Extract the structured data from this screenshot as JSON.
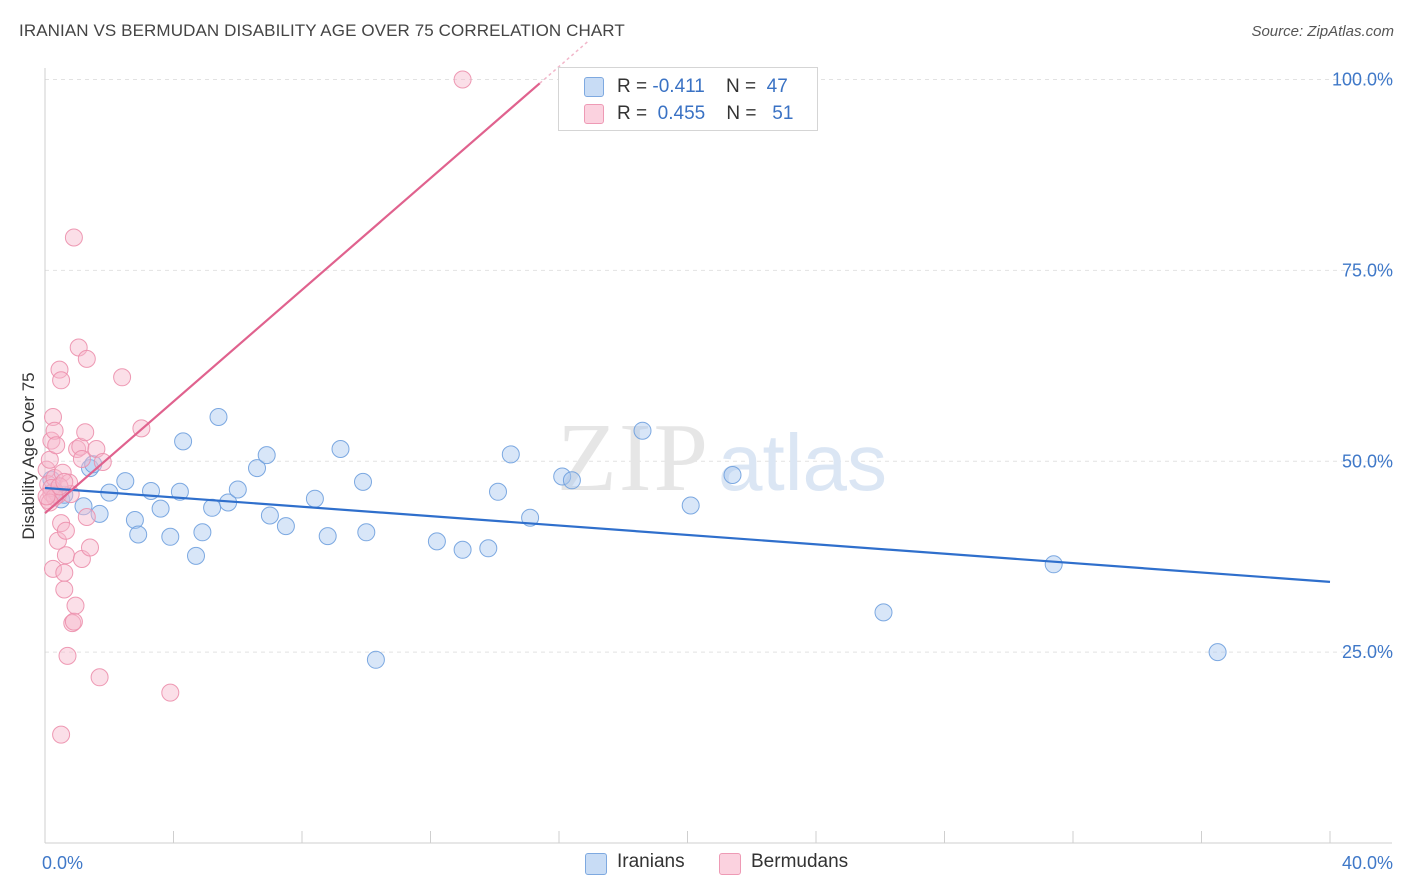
{
  "header": {
    "title": "IRANIAN VS BERMUDAN DISABILITY AGE OVER 75 CORRELATION CHART",
    "source": "Source: ZipAtlas.com"
  },
  "watermark": {
    "zip": "ZIP",
    "atlas": "atlas"
  },
  "legend": {
    "series": [
      {
        "r_label": "R =",
        "r_value": "-0.411",
        "n_label": "N =",
        "n_value": "47",
        "color": "#a9c8ef"
      },
      {
        "r_label": "R =",
        "r_value": "0.455",
        "n_label": "N =",
        "n_value": "51",
        "color": "#f7b8cc"
      }
    ],
    "bottom": [
      {
        "label": "Iranians",
        "color": "#a9c8ef"
      },
      {
        "label": "Bermudans",
        "color": "#f7b8cc"
      }
    ]
  },
  "chart_data": {
    "type": "scatter",
    "title": "IRANIAN VS BERMUDAN DISABILITY AGE OVER 75 CORRELATION CHART",
    "xlabel": "",
    "ylabel": "Disability Age Over 75",
    "xlim": [
      0,
      40
    ],
    "ylim": [
      0,
      104
    ],
    "x_tick_labels": {
      "min": "0.0%",
      "max": "40.0%"
    },
    "y_ticks": [
      {
        "value": 25,
        "label": "25.0%"
      },
      {
        "value": 50,
        "label": "50.0%"
      },
      {
        "value": 75,
        "label": "75.0%"
      },
      {
        "value": 100,
        "label": "100.0%"
      }
    ],
    "grid": true,
    "legend_position": "top-center",
    "series": [
      {
        "name": "Iranians",
        "color": "#6fa0de",
        "fill": "#a9c8ef",
        "trend": {
          "x0": 0,
          "y0": 46.5,
          "x1": 40,
          "y1": 34.2,
          "color": "#2f6fcc"
        },
        "points": [
          [
            0.2,
            47.6
          ],
          [
            0.3,
            46.1
          ],
          [
            0.5,
            45.0
          ],
          [
            0.6,
            45.6
          ],
          [
            1.2,
            44.1
          ],
          [
            1.4,
            49.1
          ],
          [
            1.5,
            49.6
          ],
          [
            1.7,
            43.1
          ],
          [
            2.0,
            45.9
          ],
          [
            2.5,
            47.4
          ],
          [
            2.8,
            42.3
          ],
          [
            2.9,
            40.4
          ],
          [
            3.3,
            46.1
          ],
          [
            3.6,
            43.8
          ],
          [
            3.9,
            40.1
          ],
          [
            4.2,
            46.0
          ],
          [
            4.3,
            52.6
          ],
          [
            4.7,
            37.6
          ],
          [
            4.9,
            40.7
          ],
          [
            5.2,
            43.9
          ],
          [
            5.4,
            55.8
          ],
          [
            5.7,
            44.6
          ],
          [
            6.0,
            46.3
          ],
          [
            6.6,
            49.1
          ],
          [
            6.9,
            50.8
          ],
          [
            7.0,
            42.9
          ],
          [
            7.5,
            41.5
          ],
          [
            8.4,
            45.1
          ],
          [
            8.8,
            40.2
          ],
          [
            9.2,
            51.6
          ],
          [
            9.9,
            47.3
          ],
          [
            10.0,
            40.7
          ],
          [
            10.3,
            24.0
          ],
          [
            12.2,
            39.5
          ],
          [
            13.0,
            38.4
          ],
          [
            13.8,
            38.6
          ],
          [
            14.1,
            46.0
          ],
          [
            14.5,
            50.9
          ],
          [
            15.1,
            42.6
          ],
          [
            16.1,
            48.0
          ],
          [
            16.4,
            47.5
          ],
          [
            18.6,
            54.0
          ],
          [
            20.1,
            44.2
          ],
          [
            21.4,
            48.2
          ],
          [
            31.4,
            36.5
          ],
          [
            36.5,
            25.0
          ],
          [
            26.1,
            30.2
          ]
        ]
      },
      {
        "name": "Bermudans",
        "color": "#ec8fac",
        "fill": "#f7b8cc",
        "trend": {
          "x0": 0,
          "y0": 43.2,
          "x1": 15.4,
          "y1": 99.5,
          "color": "#e0628e"
        },
        "points": [
          [
            0.05,
            48.9
          ],
          [
            0.1,
            47.0
          ],
          [
            0.1,
            44.9
          ],
          [
            0.15,
            50.2
          ],
          [
            0.2,
            45.8
          ],
          [
            0.2,
            52.7
          ],
          [
            0.25,
            55.8
          ],
          [
            0.25,
            35.9
          ],
          [
            0.3,
            54.0
          ],
          [
            0.3,
            47.8
          ],
          [
            0.35,
            52.1
          ],
          [
            0.4,
            45.6
          ],
          [
            0.4,
            39.6
          ],
          [
            0.45,
            62.0
          ],
          [
            0.5,
            60.6
          ],
          [
            0.5,
            14.2
          ],
          [
            0.5,
            41.9
          ],
          [
            0.55,
            48.5
          ],
          [
            0.6,
            33.2
          ],
          [
            0.6,
            35.4
          ],
          [
            0.65,
            37.7
          ],
          [
            0.65,
            40.9
          ],
          [
            0.7,
            24.5
          ],
          [
            0.75,
            47.2
          ],
          [
            0.8,
            45.7
          ],
          [
            0.85,
            28.8
          ],
          [
            0.9,
            29.0
          ],
          [
            0.95,
            31.1
          ],
          [
            0.9,
            79.3
          ],
          [
            1.0,
            51.6
          ],
          [
            1.05,
            64.9
          ],
          [
            1.1,
            51.9
          ],
          [
            1.15,
            37.2
          ],
          [
            1.15,
            50.3
          ],
          [
            1.25,
            53.8
          ],
          [
            1.3,
            63.4
          ],
          [
            1.3,
            42.7
          ],
          [
            1.4,
            38.7
          ],
          [
            1.6,
            51.6
          ],
          [
            1.7,
            21.7
          ],
          [
            1.8,
            49.9
          ],
          [
            2.4,
            61.0
          ],
          [
            3.0,
            54.3
          ],
          [
            3.9,
            19.7
          ],
          [
            13.0,
            100.0
          ],
          [
            0.2,
            46.5
          ],
          [
            0.3,
            45.3
          ],
          [
            0.45,
            46.7
          ],
          [
            0.6,
            47.3
          ],
          [
            0.15,
            44.6
          ],
          [
            0.05,
            45.4
          ]
        ]
      }
    ]
  }
}
